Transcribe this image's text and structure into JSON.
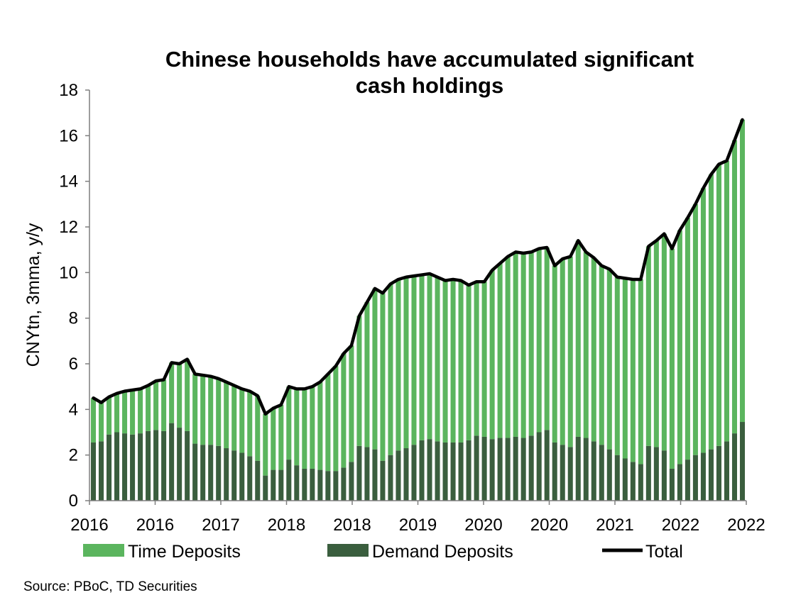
{
  "chart_data": {
    "type": "bar",
    "stacked": true,
    "title": "Chinese households have accumulated significant cash holdings",
    "title_lines": [
      "Chinese households have accumulated significant",
      "cash holdings"
    ],
    "ylabel": "CNYtn, 3mma, y/y",
    "ylim": [
      0,
      18
    ],
    "yticks": [
      0,
      2,
      4,
      6,
      8,
      10,
      12,
      14,
      16,
      18
    ],
    "xtick_labels": [
      "2016",
      "2016",
      "2017",
      "2018",
      "2018",
      "2019",
      "2020",
      "2020",
      "2021",
      "2022",
      "2022"
    ],
    "legend_position": "bottom",
    "grid": false,
    "source": "Source: PBoC, TD Securities",
    "colors": {
      "time_deposits": "#5BB55E",
      "demand_deposits": "#3A5E3E",
      "total": "#000000"
    },
    "series": [
      {
        "name": "Demand Deposits",
        "role": "bar",
        "values": [
          2.55,
          2.6,
          2.9,
          3.0,
          2.95,
          2.9,
          2.95,
          3.05,
          3.1,
          3.05,
          3.4,
          3.2,
          3.05,
          2.5,
          2.45,
          2.45,
          2.4,
          2.3,
          2.2,
          2.1,
          1.95,
          1.75,
          1.1,
          1.35,
          1.35,
          1.8,
          1.55,
          1.4,
          1.4,
          1.35,
          1.3,
          1.3,
          1.45,
          1.7,
          2.4,
          2.35,
          2.25,
          1.75,
          2.0,
          2.2,
          2.3,
          2.45,
          2.65,
          2.7,
          2.6,
          2.55,
          2.55,
          2.55,
          2.65,
          2.85,
          2.8,
          2.7,
          2.75,
          2.75,
          2.8,
          2.75,
          2.85,
          3.0,
          3.1,
          2.55,
          2.45,
          2.35,
          2.8,
          2.75,
          2.6,
          2.45,
          2.25,
          2.0,
          1.85,
          1.7,
          1.6,
          2.4,
          2.35,
          2.2,
          1.4,
          1.6,
          1.8,
          2.0,
          2.1,
          2.25,
          2.4,
          2.6,
          2.95,
          3.45
        ]
      },
      {
        "name": "Time Deposits",
        "role": "bar",
        "values": [
          1.95,
          1.7,
          1.65,
          1.7,
          1.85,
          1.95,
          1.95,
          2.0,
          2.15,
          2.25,
          2.65,
          2.8,
          3.15,
          3.05,
          3.05,
          3.0,
          2.95,
          2.9,
          2.85,
          2.8,
          2.85,
          2.85,
          2.7,
          2.7,
          2.85,
          3.2,
          3.35,
          3.5,
          3.6,
          3.85,
          4.25,
          4.6,
          5.0,
          5.1,
          5.7,
          6.35,
          7.05,
          7.35,
          7.5,
          7.5,
          7.5,
          7.4,
          7.25,
          7.25,
          7.2,
          7.1,
          7.15,
          7.1,
          6.8,
          6.75,
          6.8,
          7.4,
          7.65,
          7.95,
          8.1,
          8.1,
          8.05,
          8.05,
          8.0,
          7.75,
          8.15,
          8.35,
          8.6,
          8.15,
          8.05,
          7.85,
          7.9,
          7.8,
          7.9,
          8.0,
          8.1,
          8.75,
          9.05,
          9.5,
          9.65,
          10.25,
          10.6,
          11.0,
          11.6,
          12.05,
          12.35,
          12.3,
          12.85,
          13.25
        ]
      },
      {
        "name": "Total",
        "role": "line",
        "values": [
          4.5,
          4.3,
          4.55,
          4.7,
          4.8,
          4.85,
          4.9,
          5.05,
          5.25,
          5.3,
          6.05,
          6.0,
          6.2,
          5.55,
          5.5,
          5.45,
          5.35,
          5.2,
          5.05,
          4.9,
          4.8,
          4.6,
          3.8,
          4.05,
          4.2,
          5.0,
          4.9,
          4.9,
          5.0,
          5.2,
          5.55,
          5.9,
          6.45,
          6.8,
          8.1,
          8.7,
          9.3,
          9.1,
          9.5,
          9.7,
          9.8,
          9.85,
          9.9,
          9.95,
          9.8,
          9.65,
          9.7,
          9.65,
          9.45,
          9.6,
          9.6,
          10.1,
          10.4,
          10.7,
          10.9,
          10.85,
          10.9,
          11.05,
          11.1,
          10.3,
          10.6,
          10.7,
          11.4,
          10.9,
          10.65,
          10.3,
          10.15,
          9.8,
          9.75,
          9.7,
          9.7,
          11.15,
          11.4,
          11.7,
          11.05,
          11.85,
          12.4,
          13.0,
          13.7,
          14.3,
          14.75,
          14.9,
          15.8,
          16.7
        ]
      }
    ]
  }
}
